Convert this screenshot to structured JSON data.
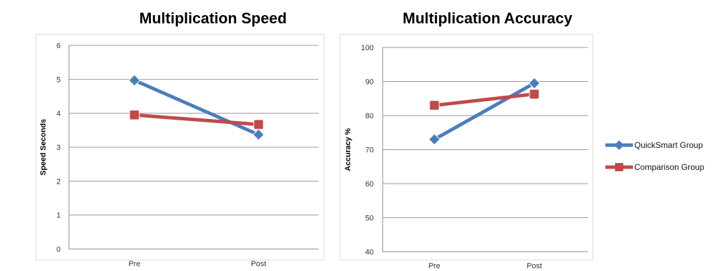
{
  "chart_data": [
    {
      "type": "line",
      "title": "Multiplication Speed",
      "xlabel": "",
      "ylabel": "Speed Seconds",
      "categories": [
        "Pre",
        "Post"
      ],
      "ylim": [
        0,
        6
      ],
      "yticks": [
        0,
        1,
        2,
        3,
        4,
        5,
        6
      ],
      "grid": true,
      "series": [
        {
          "name": "QuickSmart Group",
          "values": [
            4.97,
            3.37
          ],
          "color": "#4a7ebb",
          "marker": "diamond"
        },
        {
          "name": "Comparison Group",
          "values": [
            3.95,
            3.67
          ],
          "color": "#be4b48",
          "marker": "square"
        }
      ]
    },
    {
      "type": "line",
      "title": "Multiplication Accuracy",
      "xlabel": "",
      "ylabel": "Accuracy %",
      "categories": [
        "Pre",
        "Post"
      ],
      "ylim": [
        40,
        100
      ],
      "yticks": [
        40,
        50,
        60,
        70,
        80,
        90,
        100
      ],
      "grid": true,
      "legend_position": "right",
      "series": [
        {
          "name": "QuickSmart Group",
          "values": [
            73,
            89.5
          ],
          "color": "#4a7ebb",
          "marker": "diamond"
        },
        {
          "name": "Comparison Group",
          "values": [
            83,
            86.3
          ],
          "color": "#be4b48",
          "marker": "square"
        }
      ]
    }
  ]
}
